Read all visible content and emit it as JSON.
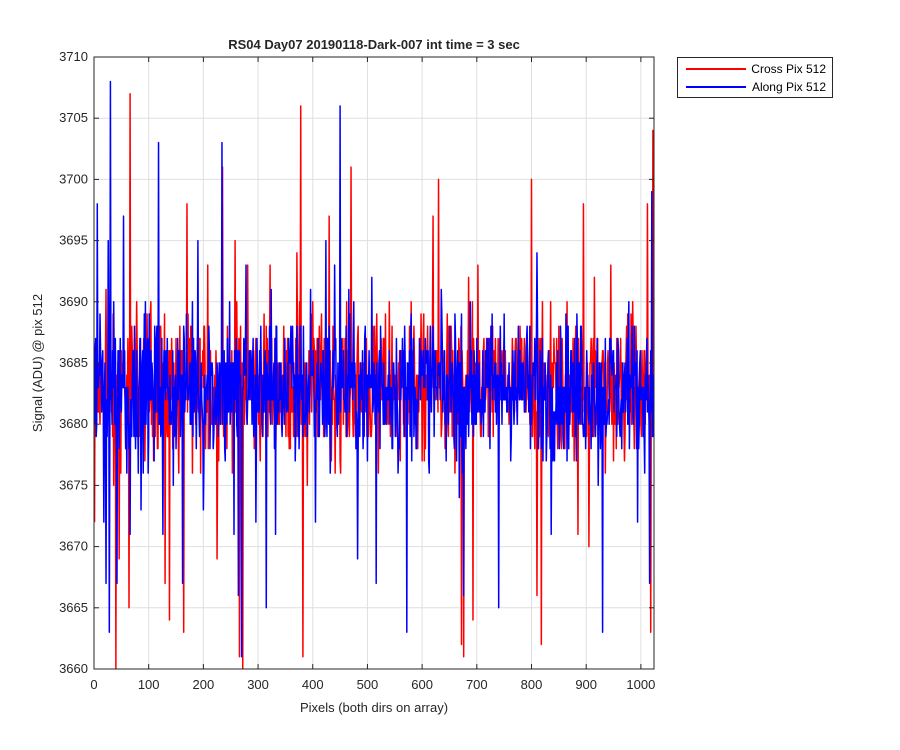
{
  "chart_data": {
    "type": "line",
    "title": "RS04 Day07 20190118-Dark-007 int time = 3 sec",
    "xlabel": "Pixels (both dirs on array)",
    "ylabel": "Signal (ADU) @ pix 512",
    "xlim": [
      0,
      1024
    ],
    "ylim": [
      3660,
      3710
    ],
    "xticks": [
      0,
      100,
      200,
      300,
      400,
      500,
      600,
      700,
      800,
      900,
      1000
    ],
    "yticks": [
      3660,
      3665,
      3670,
      3675,
      3680,
      3685,
      3690,
      3695,
      3700,
      3705,
      3710
    ],
    "grid": true,
    "legend_position": "outside top-right",
    "series": [
      {
        "name": "Cross Pix 512",
        "color": "#ff0000",
        "x_range": [
          1,
          1024
        ],
        "mean": 3683,
        "approx_min": 3660,
        "approx_max": 3707,
        "points": [
          [
            1,
            3672
          ],
          [
            8,
            3681
          ],
          [
            15,
            3684
          ],
          [
            22,
            3691
          ],
          [
            29,
            3683
          ],
          [
            36,
            3675
          ],
          [
            40,
            3660
          ],
          [
            46,
            3669
          ],
          [
            52,
            3683
          ],
          [
            58,
            3678
          ],
          [
            64,
            3665
          ],
          [
            66,
            3707
          ],
          [
            70,
            3686
          ],
          [
            78,
            3690
          ],
          [
            86,
            3676
          ],
          [
            95,
            3683
          ],
          [
            104,
            3690
          ],
          [
            113,
            3687
          ],
          [
            122,
            3688
          ],
          [
            130,
            3667
          ],
          [
            138,
            3664
          ],
          [
            146,
            3685
          ],
          [
            155,
            3676
          ],
          [
            164,
            3663
          ],
          [
            170,
            3698
          ],
          [
            180,
            3676
          ],
          [
            190,
            3682
          ],
          [
            199,
            3686
          ],
          [
            208,
            3693
          ],
          [
            216,
            3681
          ],
          [
            225,
            3669
          ],
          [
            235,
            3701
          ],
          [
            242,
            3682
          ],
          [
            250,
            3685
          ],
          [
            258,
            3695
          ],
          [
            266,
            3661
          ],
          [
            272,
            3660
          ],
          [
            281,
            3693
          ],
          [
            290,
            3683
          ],
          [
            298,
            3686
          ],
          [
            306,
            3680
          ],
          [
            315,
            3688
          ],
          [
            322,
            3693
          ],
          [
            330,
            3682
          ],
          [
            340,
            3685
          ],
          [
            350,
            3682
          ],
          [
            360,
            3685
          ],
          [
            371,
            3694
          ],
          [
            378,
            3706
          ],
          [
            382,
            3661
          ],
          [
            390,
            3675
          ],
          [
            400,
            3690
          ],
          [
            410,
            3686
          ],
          [
            420,
            3679
          ],
          [
            430,
            3697
          ],
          [
            440,
            3682
          ],
          [
            450,
            3677
          ],
          [
            460,
            3686
          ],
          [
            470,
            3701
          ],
          [
            480,
            3680
          ],
          [
            490,
            3683
          ],
          [
            500,
            3684
          ],
          [
            510,
            3688
          ],
          [
            520,
            3676
          ],
          [
            530,
            3687
          ],
          [
            540,
            3690
          ],
          [
            550,
            3684
          ],
          [
            560,
            3677
          ],
          [
            570,
            3683
          ],
          [
            580,
            3690
          ],
          [
            590,
            3684
          ],
          [
            600,
            3677
          ],
          [
            610,
            3688
          ],
          [
            620,
            3697
          ],
          [
            630,
            3700
          ],
          [
            640,
            3683
          ],
          [
            650,
            3683
          ],
          [
            660,
            3676
          ],
          [
            672,
            3662
          ],
          [
            676,
            3661
          ],
          [
            685,
            3692
          ],
          [
            693,
            3664
          ],
          [
            702,
            3693
          ],
          [
            710,
            3681
          ],
          [
            720,
            3686
          ],
          [
            730,
            3679
          ],
          [
            740,
            3684
          ],
          [
            750,
            3687
          ],
          [
            760,
            3682
          ],
          [
            770,
            3686
          ],
          [
            780,
            3685
          ],
          [
            790,
            3681
          ],
          [
            800,
            3700
          ],
          [
            810,
            3666
          ],
          [
            818,
            3662
          ],
          [
            825,
            3683
          ],
          [
            835,
            3690
          ],
          [
            845,
            3682
          ],
          [
            855,
            3678
          ],
          [
            865,
            3690
          ],
          [
            875,
            3679
          ],
          [
            885,
            3671
          ],
          [
            895,
            3698
          ],
          [
            905,
            3670
          ],
          [
            915,
            3692
          ],
          [
            925,
            3683
          ],
          [
            935,
            3676
          ],
          [
            945,
            3693
          ],
          [
            955,
            3678
          ],
          [
            965,
            3685
          ],
          [
            975,
            3682
          ],
          [
            985,
            3690
          ],
          [
            995,
            3678
          ],
          [
            1005,
            3683
          ],
          [
            1012,
            3698
          ],
          [
            1018,
            3663
          ],
          [
            1022,
            3704
          ],
          [
            1024,
            3681
          ]
        ]
      },
      {
        "name": "Along Pix 512",
        "color": "#0000ff",
        "x_range": [
          1,
          1024
        ],
        "mean": 3683,
        "approx_min": 3661,
        "approx_max": 3708,
        "points": [
          [
            1,
            3680
          ],
          [
            6,
            3698
          ],
          [
            12,
            3686
          ],
          [
            18,
            3672
          ],
          [
            22,
            3667
          ],
          [
            26,
            3695
          ],
          [
            28,
            3663
          ],
          [
            30,
            3708
          ],
          [
            36,
            3690
          ],
          [
            42,
            3667
          ],
          [
            48,
            3687
          ],
          [
            54,
            3697
          ],
          [
            60,
            3676
          ],
          [
            66,
            3671
          ],
          [
            72,
            3684
          ],
          [
            78,
            3686
          ],
          [
            86,
            3673
          ],
          [
            94,
            3690
          ],
          [
            102,
            3682
          ],
          [
            110,
            3677
          ],
          [
            118,
            3703
          ],
          [
            126,
            3671
          ],
          [
            135,
            3683
          ],
          [
            145,
            3675
          ],
          [
            155,
            3686
          ],
          [
            162,
            3667
          ],
          [
            170,
            3685
          ],
          [
            180,
            3690
          ],
          [
            190,
            3695
          ],
          [
            200,
            3673
          ],
          [
            210,
            3688
          ],
          [
            218,
            3678
          ],
          [
            226,
            3684
          ],
          [
            234,
            3703
          ],
          [
            240,
            3677
          ],
          [
            248,
            3690
          ],
          [
            256,
            3671
          ],
          [
            264,
            3666
          ],
          [
            270,
            3661
          ],
          [
            278,
            3693
          ],
          [
            286,
            3684
          ],
          [
            296,
            3672
          ],
          [
            305,
            3688
          ],
          [
            315,
            3665
          ],
          [
            324,
            3691
          ],
          [
            332,
            3671
          ],
          [
            342,
            3685
          ],
          [
            350,
            3682
          ],
          [
            360,
            3688
          ],
          [
            368,
            3677
          ],
          [
            378,
            3688
          ],
          [
            386,
            3680
          ],
          [
            396,
            3691
          ],
          [
            405,
            3672
          ],
          [
            415,
            3685
          ],
          [
            424,
            3695
          ],
          [
            432,
            3676
          ],
          [
            440,
            3693
          ],
          [
            450,
            3706
          ],
          [
            458,
            3682
          ],
          [
            466,
            3691
          ],
          [
            474,
            3686
          ],
          [
            482,
            3669
          ],
          [
            490,
            3682
          ],
          [
            500,
            3677
          ],
          [
            508,
            3692
          ],
          [
            516,
            3667
          ],
          [
            524,
            3688
          ],
          [
            532,
            3682
          ],
          [
            540,
            3686
          ],
          [
            548,
            3685
          ],
          [
            556,
            3676
          ],
          [
            564,
            3687
          ],
          [
            572,
            3663
          ],
          [
            580,
            3689
          ],
          [
            588,
            3682
          ],
          [
            596,
            3687
          ],
          [
            604,
            3684
          ],
          [
            612,
            3677
          ],
          [
            620,
            3688
          ],
          [
            628,
            3682
          ],
          [
            636,
            3689
          ],
          [
            644,
            3677
          ],
          [
            652,
            3684
          ],
          [
            660,
            3689
          ],
          [
            668,
            3674
          ],
          [
            676,
            3666
          ],
          [
            684,
            3684
          ],
          [
            692,
            3684
          ],
          [
            700,
            3687
          ],
          [
            708,
            3680
          ],
          [
            716,
            3686
          ],
          [
            724,
            3678
          ],
          [
            732,
            3683
          ],
          [
            740,
            3665
          ],
          [
            750,
            3689
          ],
          [
            758,
            3683
          ],
          [
            766,
            3686
          ],
          [
            774,
            3680
          ],
          [
            782,
            3685
          ],
          [
            790,
            3686
          ],
          [
            800,
            3680
          ],
          [
            810,
            3694
          ],
          [
            818,
            3678
          ],
          [
            826,
            3683
          ],
          [
            836,
            3671
          ],
          [
            846,
            3685
          ],
          [
            856,
            3683
          ],
          [
            866,
            3688
          ],
          [
            874,
            3683
          ],
          [
            882,
            3677
          ],
          [
            890,
            3688
          ],
          [
            898,
            3683
          ],
          [
            906,
            3683
          ],
          [
            914,
            3685
          ],
          [
            922,
            3675
          ],
          [
            930,
            3663
          ],
          [
            938,
            3680
          ],
          [
            946,
            3685
          ],
          [
            954,
            3683
          ],
          [
            962,
            3679
          ],
          [
            970,
            3684
          ],
          [
            978,
            3690
          ],
          [
            986,
            3680
          ],
          [
            994,
            3672
          ],
          [
            1002,
            3683
          ],
          [
            1010,
            3685
          ],
          [
            1016,
            3667
          ],
          [
            1020,
            3699
          ],
          [
            1024,
            3682
          ]
        ]
      }
    ]
  }
}
